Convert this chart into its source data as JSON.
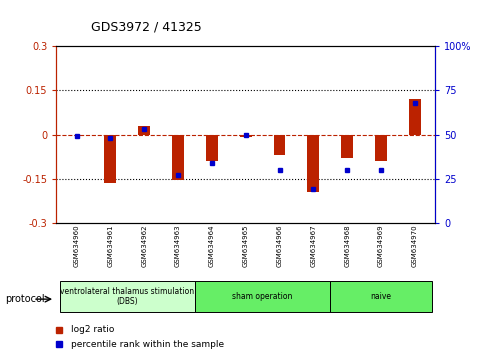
{
  "title": "GDS3972 / 41325",
  "samples": [
    "GSM634960",
    "GSM634961",
    "GSM634962",
    "GSM634963",
    "GSM634964",
    "GSM634965",
    "GSM634966",
    "GSM634967",
    "GSM634968",
    "GSM634969",
    "GSM634970"
  ],
  "log2_ratio": [
    0.0,
    -0.165,
    0.03,
    -0.155,
    -0.09,
    -0.01,
    -0.07,
    -0.195,
    -0.08,
    -0.09,
    0.12
  ],
  "percentile_rank": [
    49,
    48,
    53,
    27,
    34,
    50,
    30,
    19,
    30,
    30,
    68
  ],
  "ylim_left": [
    -0.3,
    0.3
  ],
  "ylim_right": [
    0,
    100
  ],
  "yticks_left": [
    -0.3,
    -0.15,
    0.0,
    0.15,
    0.3
  ],
  "yticks_right": [
    0,
    25,
    50,
    75,
    100
  ],
  "hline_dotted": [
    -0.15,
    0.15
  ],
  "hline_dashed": 0.0,
  "bar_color_red": "#bb2200",
  "bar_color_blue": "#0000cc",
  "bar_width": 0.35,
  "background_color": "#ffffff",
  "title_color": "#000000",
  "left_axis_color": "#bb2200",
  "right_axis_color": "#0000cc",
  "protocol_label": "protocol",
  "legend_log2": "log2 ratio",
  "legend_pct": "percentile rank within the sample",
  "groups": [
    {
      "label": "ventrolateral thalamus stimulation\n(DBS)",
      "start": 0,
      "end": 3,
      "color": "#ccffcc"
    },
    {
      "label": "sham operation",
      "start": 3,
      "end": 7,
      "color": "#66ee66"
    },
    {
      "label": "naive",
      "start": 8,
      "end": 10,
      "color": "#66ee66"
    }
  ]
}
